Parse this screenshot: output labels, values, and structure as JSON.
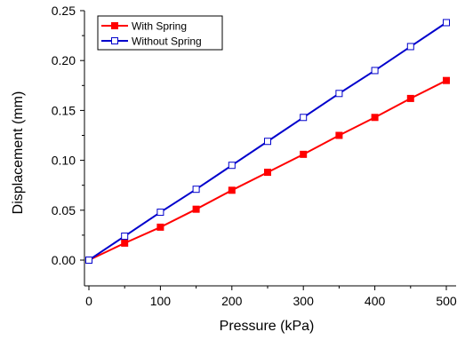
{
  "chart_data": {
    "type": "line",
    "xlabel": "Pressure (kPa)",
    "ylabel": "Displacement (mm)",
    "xlim": [
      0,
      500
    ],
    "ylim": [
      0,
      0.25
    ],
    "x_ticks": [
      0,
      100,
      200,
      300,
      400,
      500
    ],
    "x_tick_labels": [
      "0",
      "100",
      "200",
      "300",
      "400",
      "500"
    ],
    "y_ticks": [
      0,
      0.05,
      0.1,
      0.15,
      0.2,
      0.25
    ],
    "y_tick_labels": [
      "0.00",
      "0.05",
      "0.10",
      "0.15",
      "0.20",
      "0.25"
    ],
    "grid": false,
    "legend_position": "top-left",
    "x": [
      0,
      50,
      100,
      150,
      200,
      250,
      300,
      350,
      400,
      450,
      500
    ],
    "series": [
      {
        "name": "With Spring",
        "color": "#ff0000",
        "marker": "filled-square",
        "values": [
          0.0,
          0.017,
          0.033,
          0.051,
          0.07,
          0.088,
          0.106,
          0.125,
          0.143,
          0.162,
          0.18
        ]
      },
      {
        "name": "Without Spring",
        "color": "#0000cc",
        "marker": "open-square",
        "values": [
          0.0,
          0.024,
          0.048,
          0.071,
          0.095,
          0.119,
          0.143,
          0.167,
          0.19,
          0.214,
          0.238
        ]
      }
    ]
  }
}
